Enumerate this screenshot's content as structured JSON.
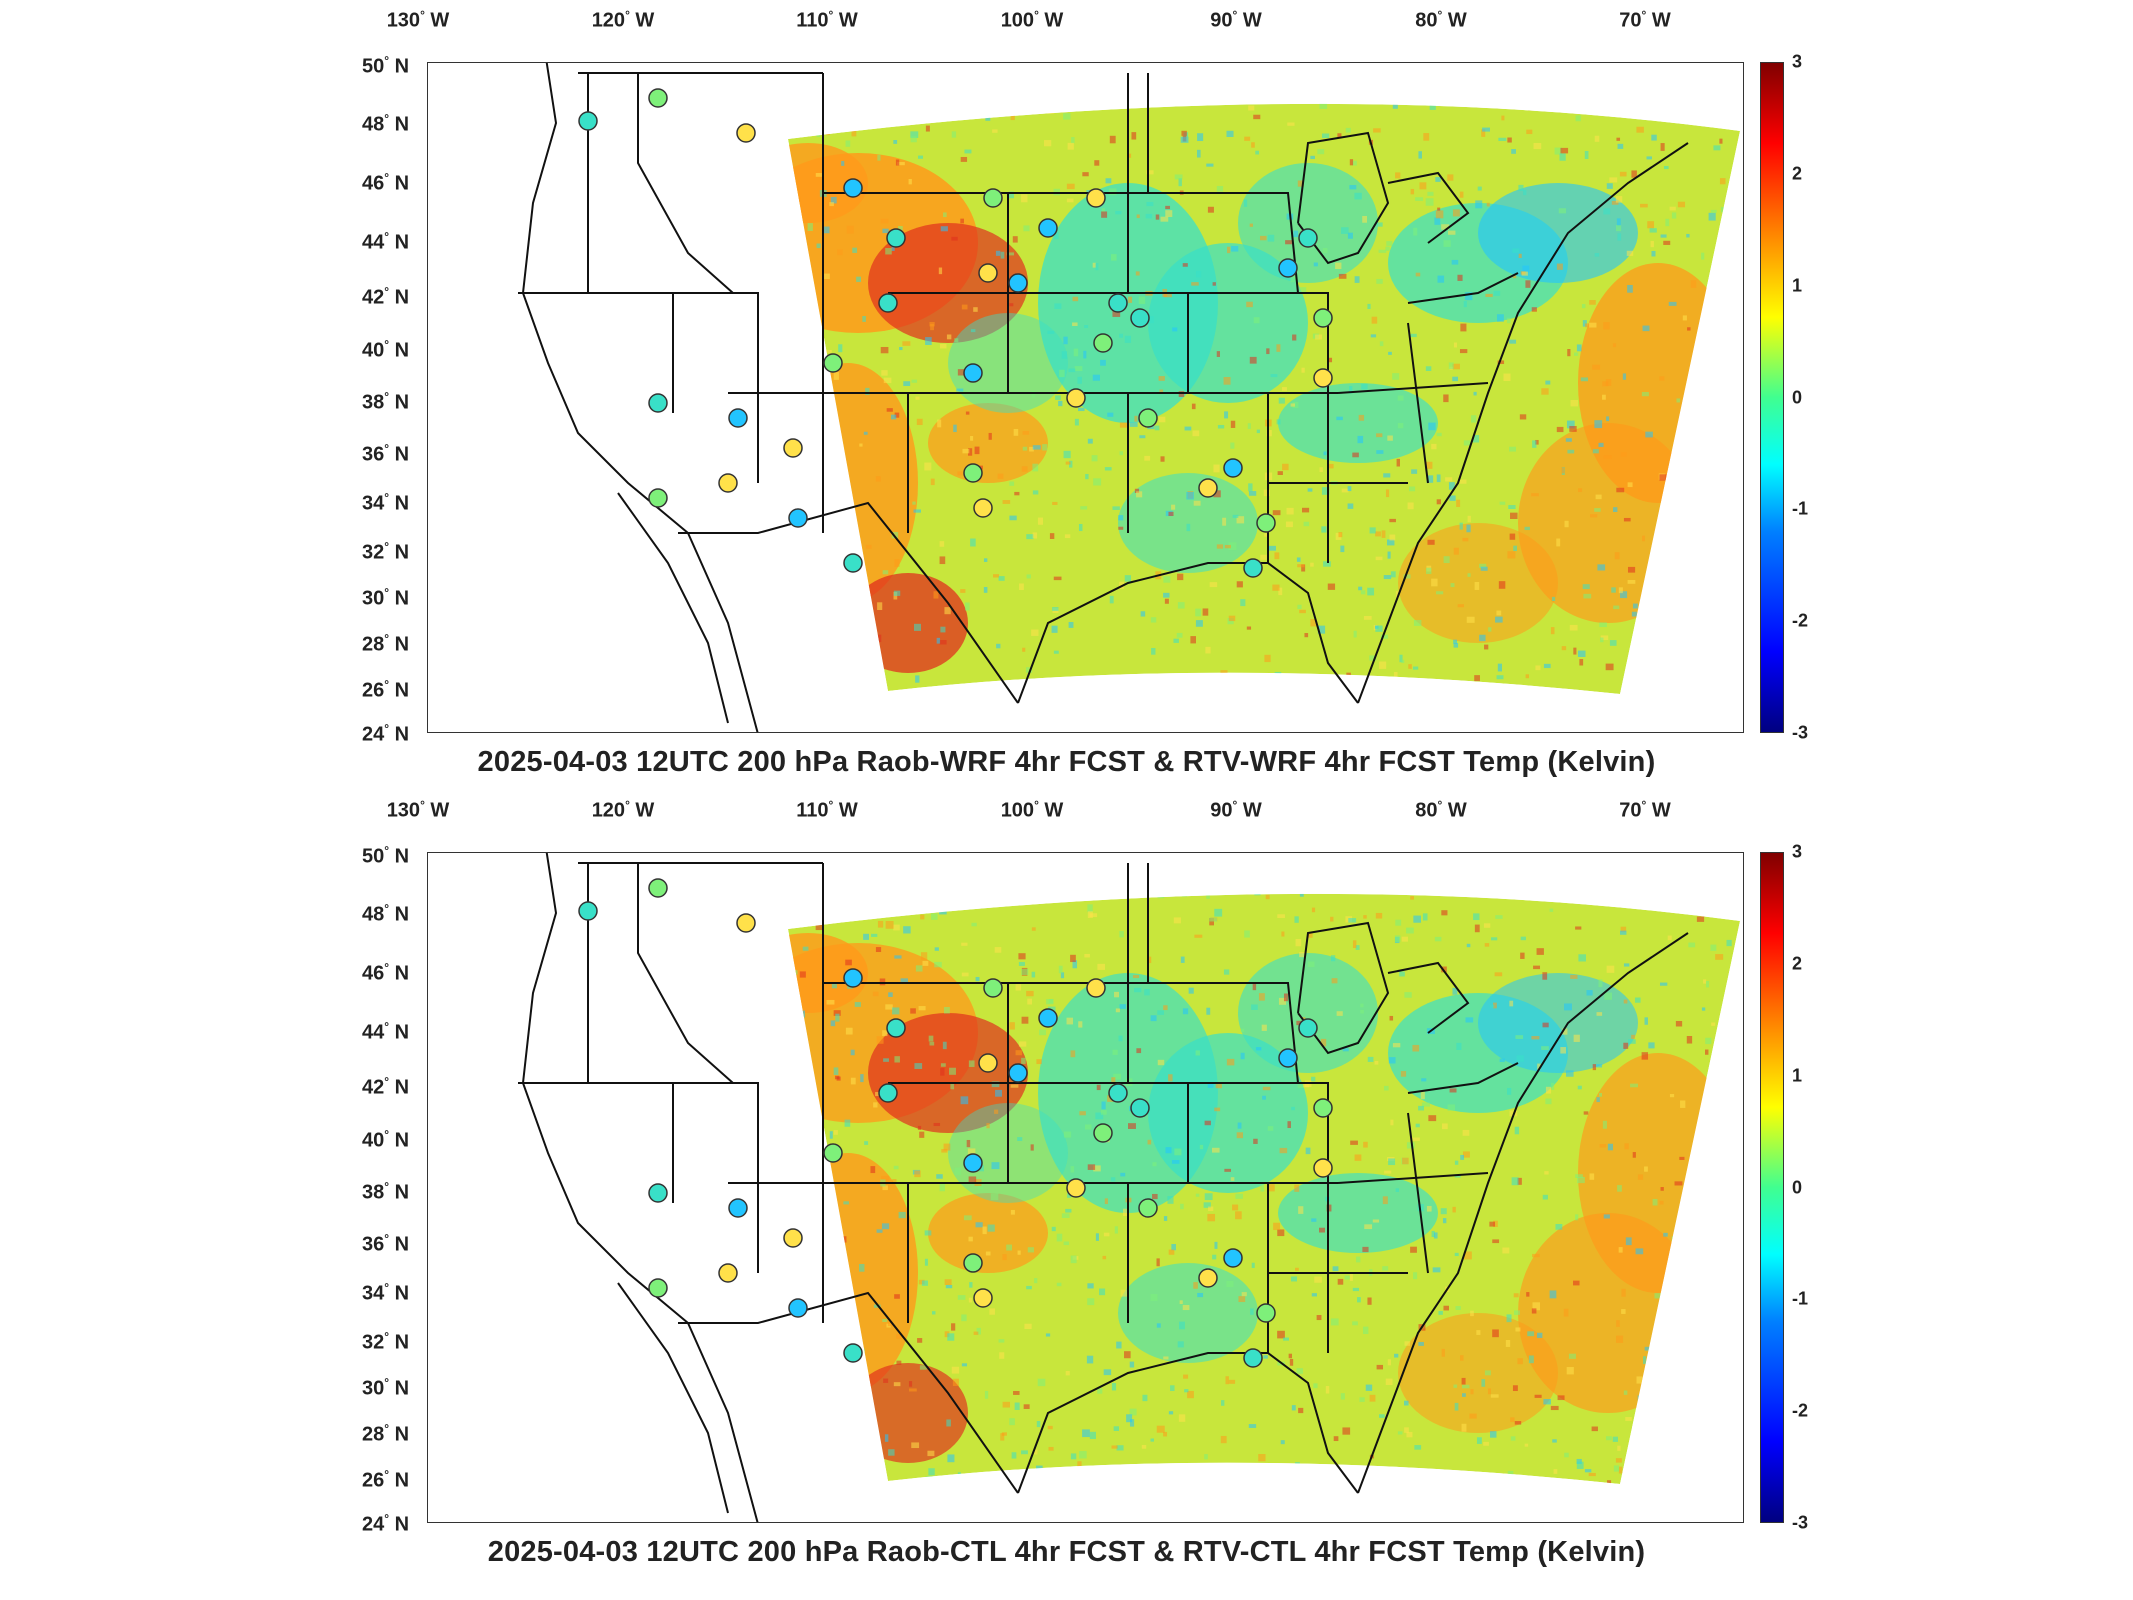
{
  "lon_labels": [
    {
      "deg": "130",
      "hem": "W"
    },
    {
      "deg": "120",
      "hem": "W"
    },
    {
      "deg": "110",
      "hem": "W"
    },
    {
      "deg": "100",
      "hem": "W"
    },
    {
      "deg": "90",
      "hem": "W"
    },
    {
      "deg": "80",
      "hem": "W"
    },
    {
      "deg": "70",
      "hem": "W"
    }
  ],
  "lat_labels": [
    {
      "deg": "50",
      "hem": "N"
    },
    {
      "deg": "48",
      "hem": "N"
    },
    {
      "deg": "46",
      "hem": "N"
    },
    {
      "deg": "44",
      "hem": "N"
    },
    {
      "deg": "42",
      "hem": "N"
    },
    {
      "deg": "40",
      "hem": "N"
    },
    {
      "deg": "38",
      "hem": "N"
    },
    {
      "deg": "36",
      "hem": "N"
    },
    {
      "deg": "34",
      "hem": "N"
    },
    {
      "deg": "32",
      "hem": "N"
    },
    {
      "deg": "30",
      "hem": "N"
    },
    {
      "deg": "28",
      "hem": "N"
    },
    {
      "deg": "26",
      "hem": "N"
    },
    {
      "deg": "24",
      "hem": "N"
    }
  ],
  "colorbar": {
    "ticks": [
      "3",
      "2",
      "1",
      "0",
      "-1",
      "-2",
      "-3"
    ],
    "range": [
      -3,
      3
    ],
    "colormap": "jet"
  },
  "panels": [
    {
      "title": "2025-04-03 12UTC 200 hPa Raob-WRF 4hr FCST & RTV-WRF 4hr FCST Temp (Kelvin)"
    },
    {
      "title": "2025-04-03 12UTC 200 hPa Raob-CTL 4hr FCST & RTV-CTL 4hr FCST Temp (Kelvin)"
    }
  ],
  "colors": {
    "field_base": "#c8e63c",
    "warm": "#ff9a1a",
    "hot": "#e0301e",
    "cool": "#39e0c8",
    "cold": "#22c4ff",
    "border": "#111111"
  }
}
